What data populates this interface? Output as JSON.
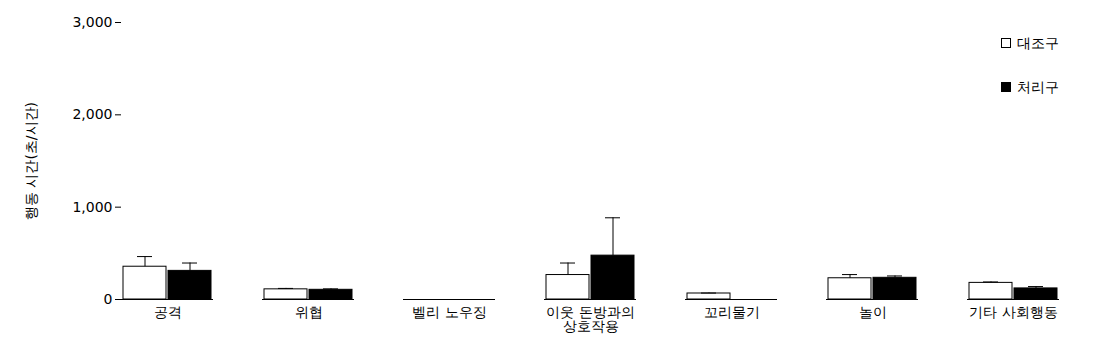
{
  "chart_data": {
    "type": "bar",
    "categories": [
      "공격",
      "위협",
      "벨리 노우징",
      "이웃 돈방과의\n상호작용",
      "꼬리물기",
      "놀이",
      "기타 사회행동"
    ],
    "series": [
      {
        "name": "대조구",
        "color": "#ffffff",
        "values": [
          355,
          110,
          0,
          265,
          65,
          230,
          180
        ],
        "errors": [
          110,
          10,
          0,
          130,
          5,
          40,
          10
        ]
      },
      {
        "name": "처리구",
        "color": "#000000",
        "values": [
          310,
          105,
          0,
          475,
          0,
          235,
          120
        ],
        "errors": [
          85,
          10,
          0,
          410,
          0,
          20,
          20
        ]
      }
    ],
    "ylabel": "행동 시간(초/시간)",
    "ylim": [
      0,
      3000
    ],
    "yticks": [
      0,
      {
        "value": 1000,
        "label": "1,000"
      },
      {
        "value": 2000,
        "label": "2,000"
      },
      {
        "value": 3000,
        "label": "3,000"
      }
    ],
    "legend": "top-right"
  }
}
